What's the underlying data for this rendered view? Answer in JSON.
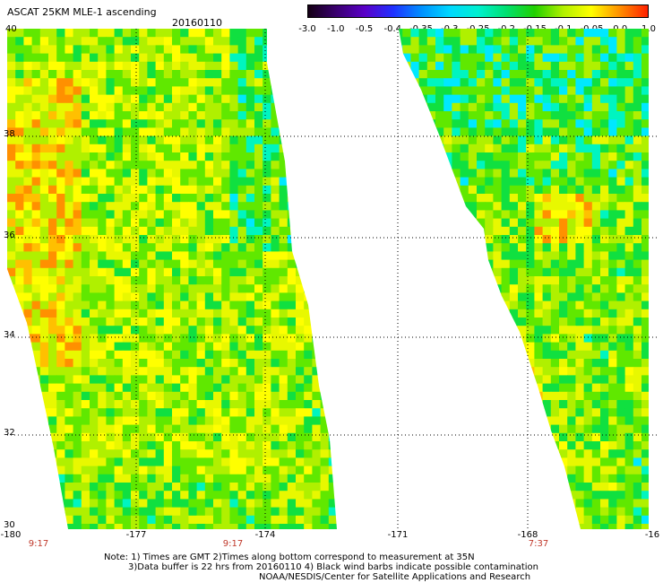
{
  "header": {
    "title": "ASCAT 25KM MLE-1 ascending",
    "date": "20160110"
  },
  "colorbar": {
    "ticks": [
      "-3.0",
      "-1.0",
      "-0.5",
      "-0.4",
      "-0.35",
      "-0.3",
      "-0.25",
      "-0.2",
      "-0.15",
      "-0.1",
      "-0.05",
      "0.0",
      "1.0"
    ],
    "colors": [
      "#140014",
      "#3a0070",
      "#5a00c8",
      "#2030ff",
      "#0090ff",
      "#00d8ff",
      "#00f0d0",
      "#00e070",
      "#20d000",
      "#b0f000",
      "#ffff00",
      "#ff9000",
      "#ff2000"
    ]
  },
  "map": {
    "lat_labels": [
      "40",
      "38",
      "36",
      "34",
      "32",
      "30"
    ],
    "lon_labels": [
      "-180",
      "-177",
      "-174",
      "-171",
      "-168",
      "-16"
    ],
    "pass_times": [
      "9:17",
      "9:17",
      "7:37"
    ],
    "time_color": "#c0392b"
  },
  "notes": {
    "line1": "Note: 1) Times are GMT 2)Times along bottom correspond to measurement at 35N",
    "line2": "3)Data buffer is 22 hrs from 20160110 4) Black wind barbs indicate possible contamination",
    "line3": "NOAA/NESDIS/Center for Satellite Applications and Research"
  }
}
